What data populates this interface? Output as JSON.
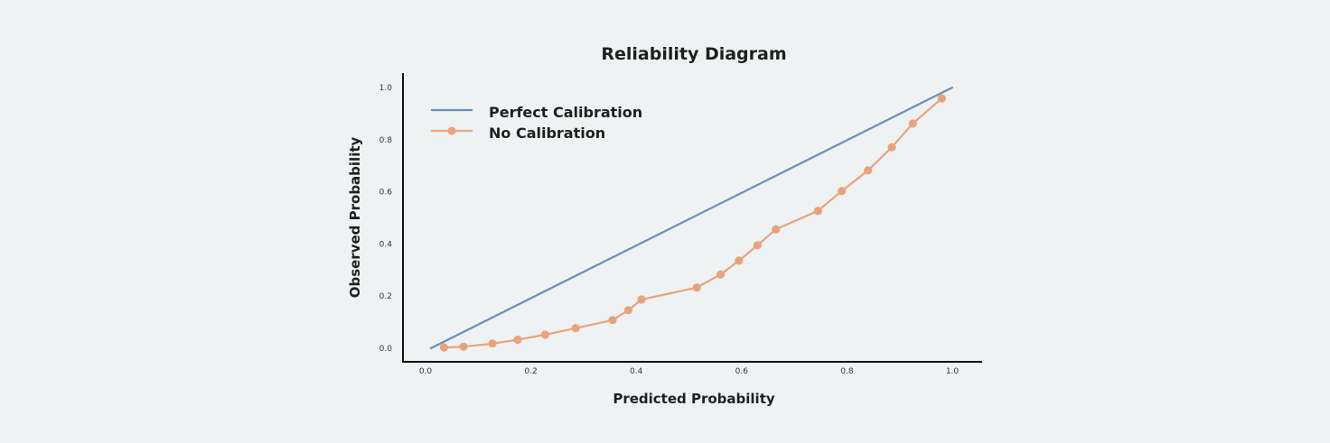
{
  "chart_data": {
    "type": "line",
    "title": "Reliability Diagram",
    "xlabel": "Predicted Probability",
    "ylabel": "Observed Probability",
    "xlim": [
      0.0,
      1.0
    ],
    "ylim": [
      0.0,
      1.0
    ],
    "xticks": [
      "0.0",
      "0.2",
      "0.4",
      "0.6",
      "0.8",
      "1.0"
    ],
    "yticks": [
      "0.0",
      "0.2",
      "0.4",
      "0.6",
      "0.8",
      "1.0"
    ],
    "grid": false,
    "legend_position": "top-left",
    "series": [
      {
        "name": "Perfect Calibration",
        "color": "#6c8ebf",
        "marker": "none",
        "x": [
          0.01,
          1.0
        ],
        "y": [
          0.0,
          1.0
        ]
      },
      {
        "name": "No Calibration",
        "color": "#e9a27c",
        "marker": "circle",
        "x": [
          0.035,
          0.072,
          0.127,
          0.175,
          0.227,
          0.285,
          0.355,
          0.385,
          0.41,
          0.515,
          0.56,
          0.595,
          0.63,
          0.665,
          0.745,
          0.79,
          0.84,
          0.885,
          0.925,
          0.98
        ],
        "y": [
          0.003,
          0.006,
          0.018,
          0.033,
          0.052,
          0.077,
          0.108,
          0.146,
          0.187,
          0.233,
          0.283,
          0.336,
          0.395,
          0.456,
          0.527,
          0.603,
          0.682,
          0.771,
          0.862,
          0.958
        ]
      }
    ]
  }
}
